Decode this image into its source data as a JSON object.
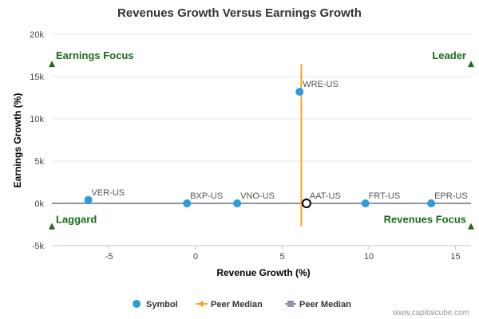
{
  "chart_data": {
    "type": "scatter",
    "title": "Revenues Growth Versus Earnings Growth",
    "xlabel": "Revenue Growth (%)",
    "ylabel": "Earnings Growth (%)",
    "xlim": [
      -8.3,
      15.9
    ],
    "ylim": [
      -5000,
      20000
    ],
    "x_ticks": [
      {
        "value": -5,
        "label": "-5"
      },
      {
        "value": 0,
        "label": "0"
      },
      {
        "value": 5,
        "label": "5"
      },
      {
        "value": 10,
        "label": "10"
      },
      {
        "value": 15,
        "label": "15"
      }
    ],
    "y_ticks": [
      {
        "value": -5000,
        "label": "-5k"
      },
      {
        "value": 0,
        "label": "0k"
      },
      {
        "value": 5000,
        "label": "5k"
      },
      {
        "value": 10000,
        "label": "10k"
      },
      {
        "value": 15000,
        "label": "15k"
      },
      {
        "value": 20000,
        "label": "20k"
      }
    ],
    "grid": true,
    "points": [
      {
        "label": "WRE-US",
        "x": 6.0,
        "y": 13200
      },
      {
        "label": "VER-US",
        "x": -6.2,
        "y": 400
      },
      {
        "label": "BXP-US",
        "x": -0.5,
        "y": 0
      },
      {
        "label": "VNO-US",
        "x": 2.4,
        "y": 0
      },
      {
        "label": "FRT-US",
        "x": 9.8,
        "y": 0
      },
      {
        "label": "EPR-US",
        "x": 13.6,
        "y": 0
      }
    ],
    "highlight": {
      "label": "AAT-US",
      "x": 6.4,
      "y": 0
    },
    "peer_median_x": 6.1,
    "peer_median_y": 0,
    "median_line_y_range": [
      -2700,
      16500
    ],
    "median_line_x_range": [
      -8.3,
      15.9
    ],
    "quadrants": [
      {
        "label": "Earnings Focus",
        "x": -8.3,
        "y": 16500,
        "position": "top-left"
      },
      {
        "label": "Leader",
        "x": 15.9,
        "y": 16500,
        "position": "top-right"
      },
      {
        "label": "Laggard",
        "x": -8.3,
        "y": -2700,
        "position": "bottom-left"
      },
      {
        "label": "Revenues Focus",
        "x": 15.9,
        "y": -2700,
        "position": "bottom-right"
      }
    ],
    "legend": {
      "placement": "bottom",
      "items": [
        {
          "label": "Symbol",
          "kind": "dot",
          "color": "#2b9bdc"
        },
        {
          "label": "Peer Median",
          "kind": "line-diamond",
          "color": "#f5a623"
        },
        {
          "label": "Peer Median",
          "kind": "line-square",
          "color": "#8c95a3"
        }
      ]
    },
    "colors": {
      "point": "#2b9bdc",
      "median_x_line": "#f5a623",
      "median_y_line": "#8c95a3",
      "quadrant": "#1a6b1a"
    }
  },
  "credit": "www.capitalcube.com"
}
